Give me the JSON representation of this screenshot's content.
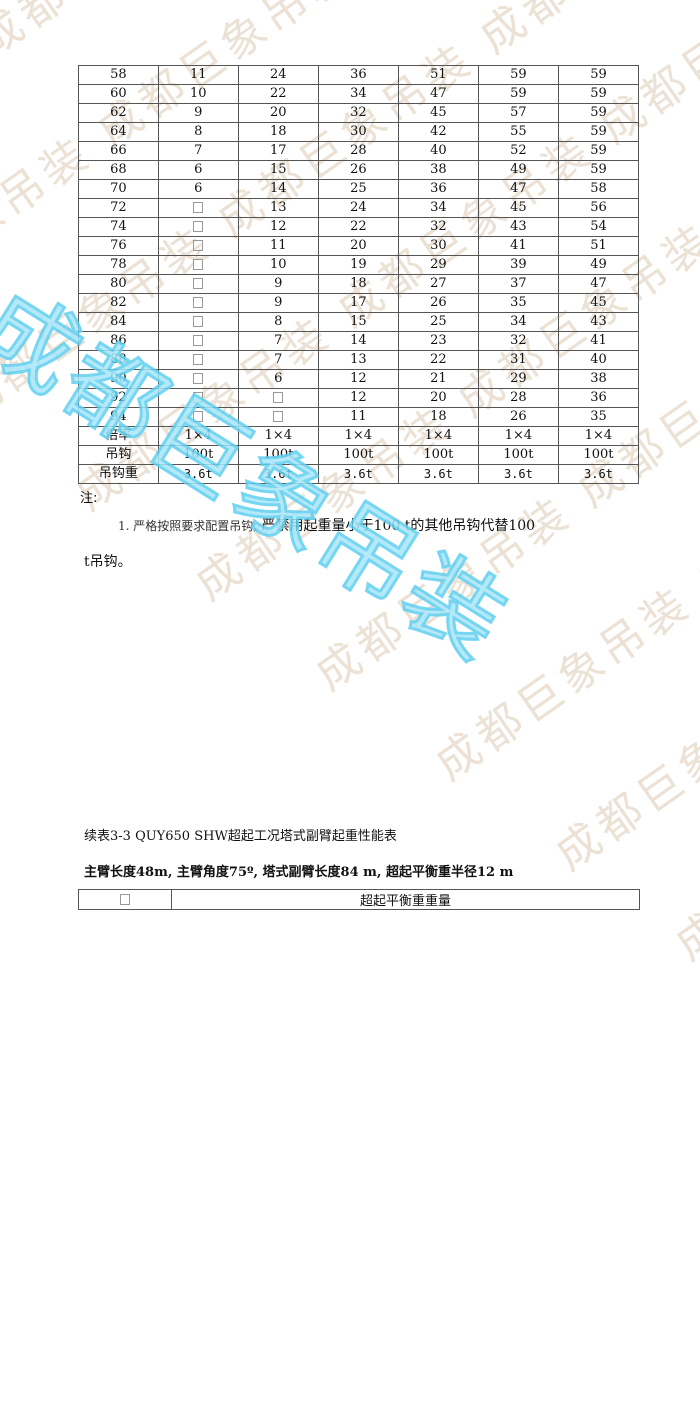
{
  "watermark": {
    "text": "成都巨象吊装",
    "color_faint": "#e6d8c8",
    "color_large": "#5fd0f0"
  },
  "table1": {
    "rows": [
      [
        "58",
        "11",
        "24",
        "36",
        "51",
        "59",
        "59"
      ],
      [
        "60",
        "10",
        "22",
        "34",
        "47",
        "59",
        "59"
      ],
      [
        "62",
        "9",
        "20",
        "32",
        "45",
        "57",
        "59"
      ],
      [
        "64",
        "8",
        "18",
        "30",
        "42",
        "55",
        "59"
      ],
      [
        "66",
        "7",
        "17",
        "28",
        "40",
        "52",
        "59"
      ],
      [
        "68",
        "6",
        "15",
        "26",
        "38",
        "49",
        "59"
      ],
      [
        "70",
        "6",
        "14",
        "25",
        "36",
        "47",
        "58"
      ],
      [
        "72",
        "□",
        "13",
        "24",
        "34",
        "45",
        "56"
      ],
      [
        "74",
        "□",
        "12",
        "22",
        "32",
        "43",
        "54"
      ],
      [
        "76",
        "□",
        "11",
        "20",
        "30",
        "41",
        "51"
      ],
      [
        "78",
        "□",
        "10",
        "19",
        "29",
        "39",
        "49"
      ],
      [
        "80",
        "□",
        "9",
        "18",
        "27",
        "37",
        "47"
      ],
      [
        "82",
        "□",
        "9",
        "17",
        "26",
        "35",
        "45"
      ],
      [
        "84",
        "□",
        "8",
        "15",
        "25",
        "34",
        "43"
      ],
      [
        "86",
        "□",
        "7",
        "14",
        "23",
        "32",
        "41"
      ],
      [
        "88",
        "□",
        "7",
        "13",
        "22",
        "31",
        "40"
      ],
      [
        "90",
        "□",
        "6",
        "12",
        "21",
        "29",
        "38"
      ],
      [
        "92",
        "□",
        "□",
        "12",
        "20",
        "28",
        "36"
      ],
      [
        "94",
        "□",
        "□",
        "11",
        "18",
        "26",
        "35"
      ]
    ],
    "footer": [
      {
        "label": "倍率",
        "values": [
          "1×4",
          "1×4",
          "1×4",
          "1×4",
          "1×4",
          "1×4"
        ]
      },
      {
        "label": "吊钩",
        "values": [
          "100t",
          "100t",
          "100t",
          "100t",
          "100t",
          "100t"
        ]
      },
      {
        "label": "吊钩重",
        "values": [
          "3.6t",
          "3.6t",
          "3.6t",
          "3.6t",
          "3.6t",
          "3.6t"
        ]
      }
    ]
  },
  "notes": {
    "label": "注:",
    "item1_prefix": "1. 严格按照要求配置吊钩,",
    "item1_main": " 严禁用起重量小于100 t的其他吊钩代替100",
    "item1_cont": "t吊钩。"
  },
  "table2_caption": "续表3-3 QUY650 SHW超起工况塔式副臂起重性能表",
  "table2_subtitle": "主臂长度48m, 主臂角度75º, 塔式副臂长度84 m, 超起平衡重半径12 m",
  "table2": {
    "col1": "□",
    "col2": "超起平衡重重量"
  }
}
